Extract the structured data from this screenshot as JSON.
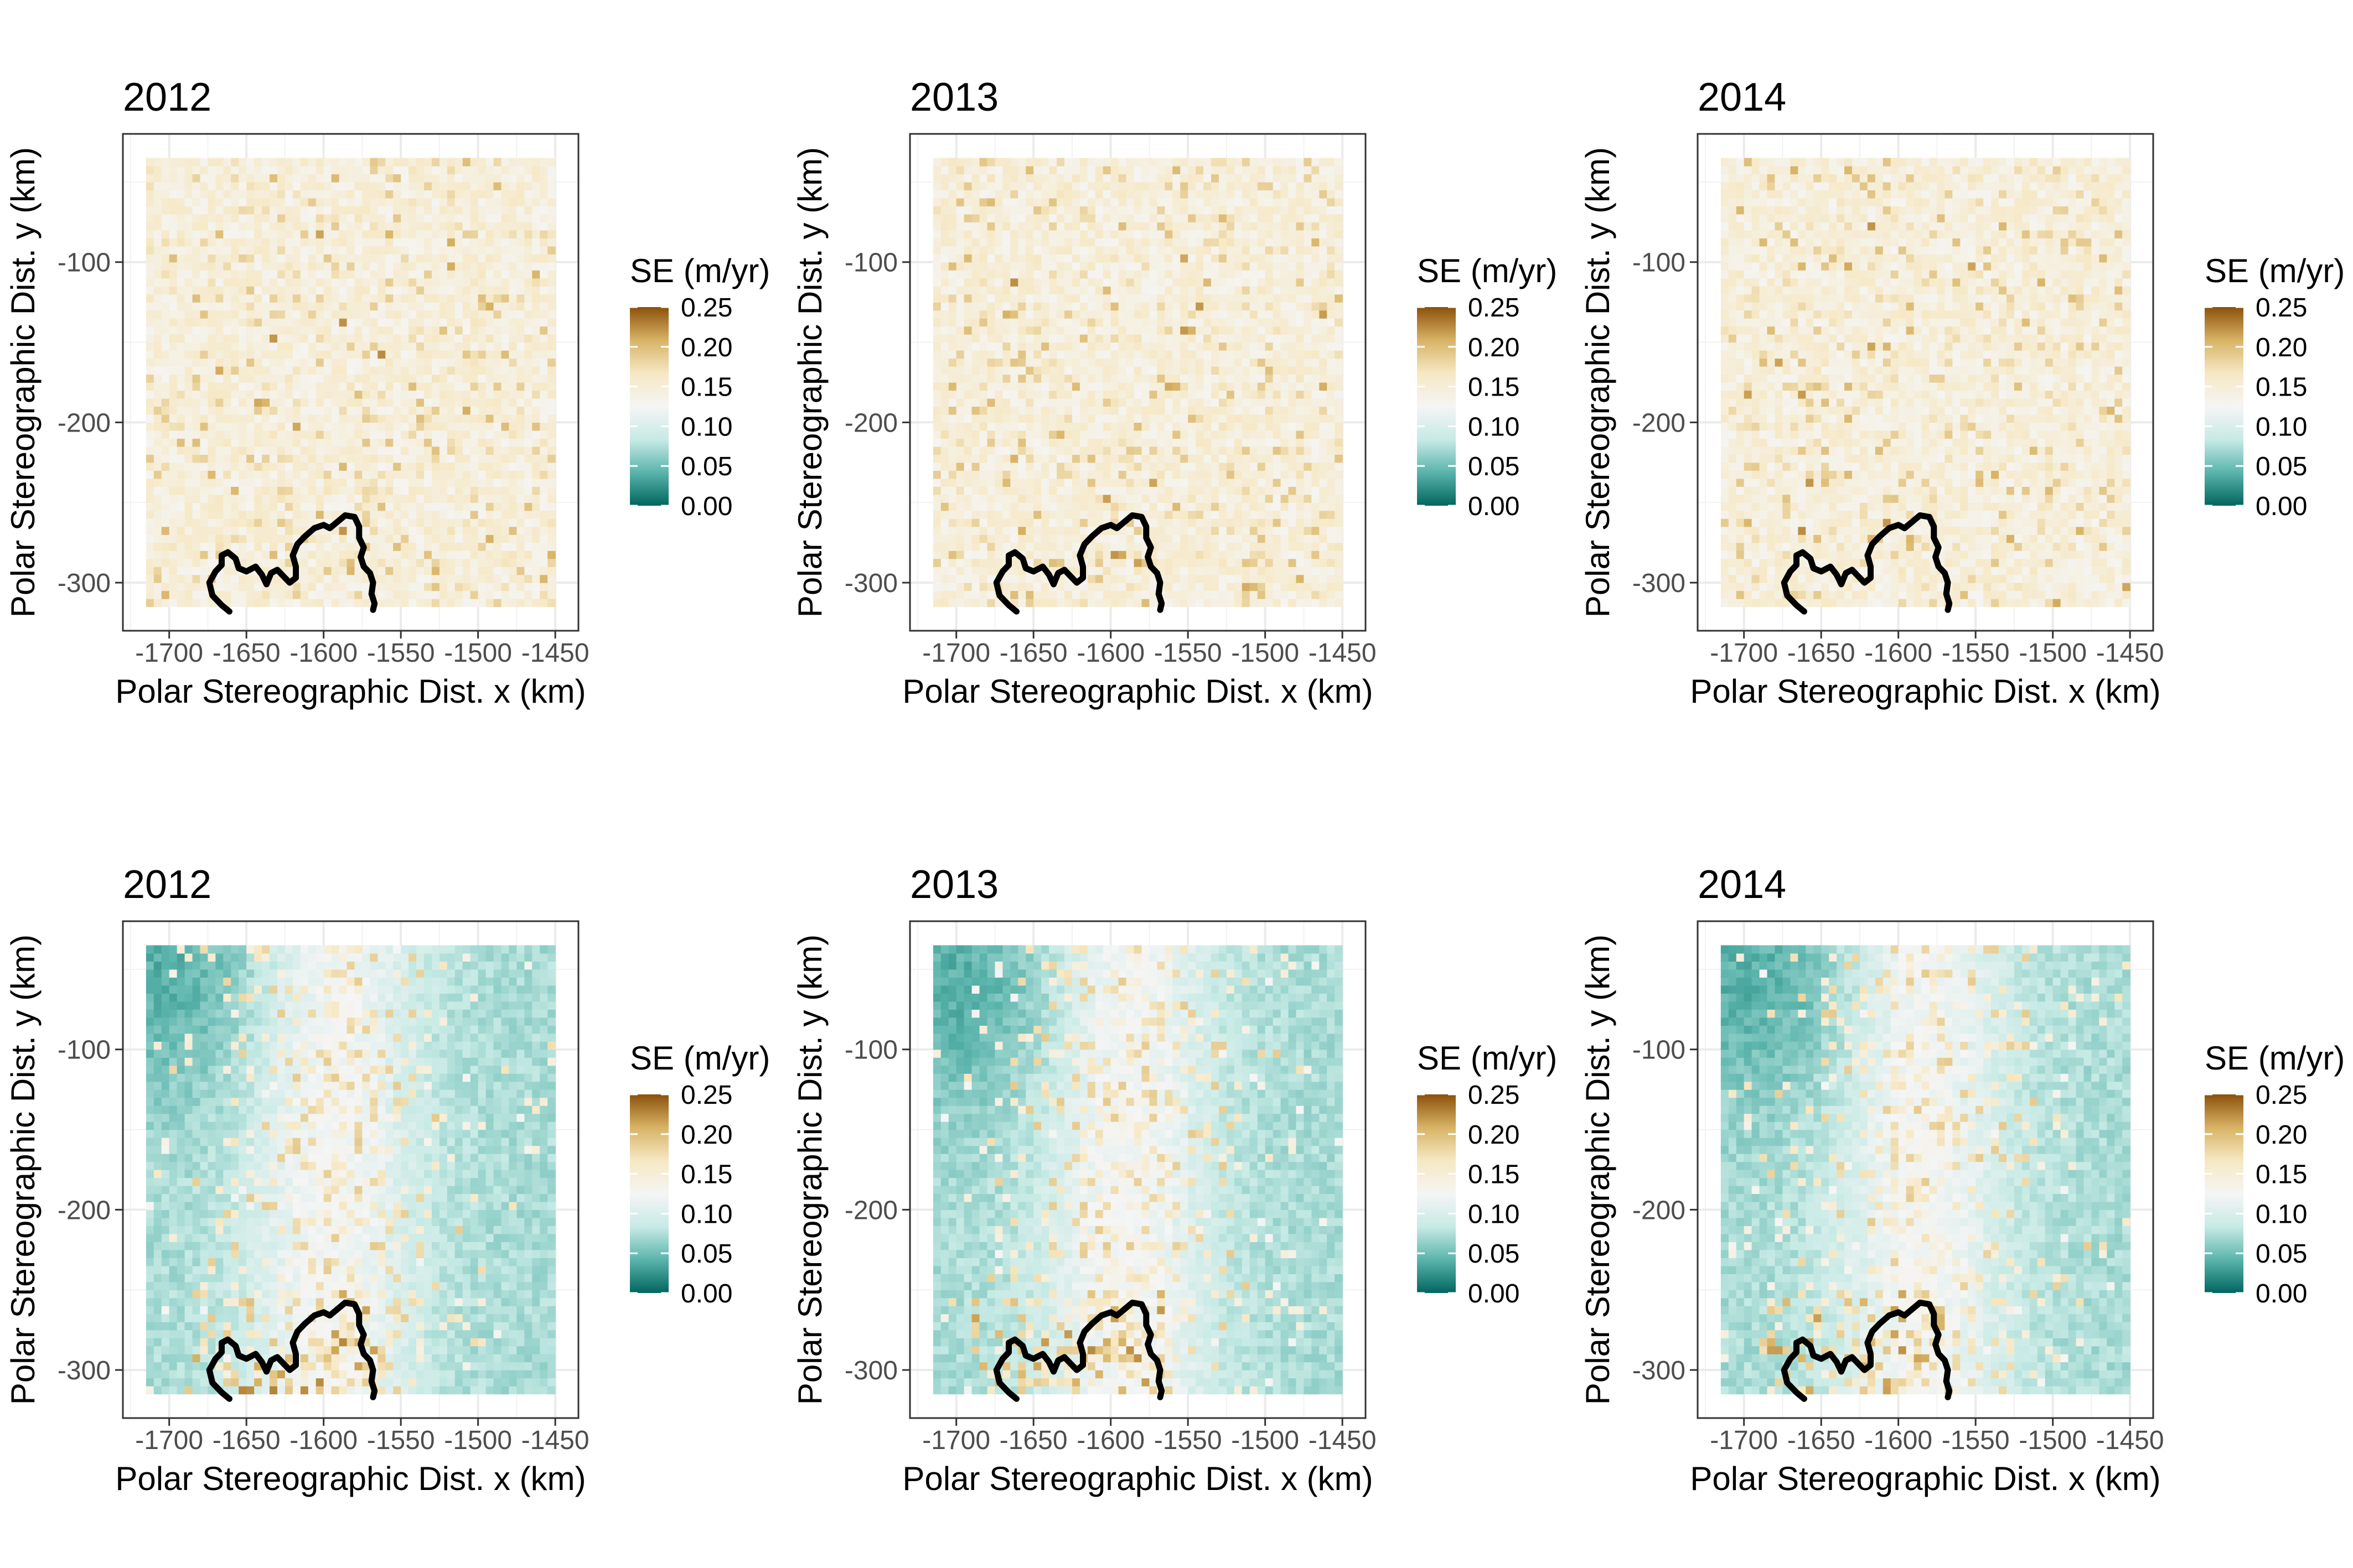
{
  "chart_data": {
    "type": "heatmap",
    "layout": "2 rows x 3 columns",
    "colorscale": {
      "name": "BrBG (diverging)",
      "colors": [
        "#01665e",
        "#5ab4ac",
        "#c7eae5",
        "#f5f5f5",
        "#f6e8c3",
        "#d8b365",
        "#8c510a"
      ],
      "range": [
        0,
        0.25
      ]
    },
    "coastline_color": "#000000",
    "panels": [
      {
        "id": "top-2012",
        "row": 1,
        "title": "2012",
        "xlabel": "Polar Stereographic Dist. x (km)",
        "ylabel": "Polar Stereographic Dist. y (km)",
        "x_ticks": [
          "-1700",
          "-1650",
          "-1600",
          "-1550",
          "-1500",
          "-1450"
        ],
        "y_ticks": [
          "-100",
          "-200",
          "-300"
        ],
        "xlim": [
          -1730,
          -1435
        ],
        "ylim": [
          -330,
          -20
        ],
        "grid_x_range": [
          -1715,
          -1450
        ],
        "grid_y_range": [
          -315,
          -35
        ],
        "legend_title": "SE (m/yr)",
        "legend_ticks": [
          "0.25",
          "0.20",
          "0.15",
          "0.10",
          "0.05",
          "0.00"
        ],
        "pattern": "uniform"
      },
      {
        "id": "top-2013",
        "row": 1,
        "title": "2013",
        "xlabel": "Polar Stereographic Dist. x (km)",
        "ylabel": "Polar Stereographic Dist. y (km)",
        "x_ticks": [
          "-1700",
          "-1650",
          "-1600",
          "-1550",
          "-1500",
          "-1450"
        ],
        "y_ticks": [
          "-100",
          "-200",
          "-300"
        ],
        "xlim": [
          -1730,
          -1435
        ],
        "ylim": [
          -330,
          -20
        ],
        "grid_x_range": [
          -1715,
          -1450
        ],
        "grid_y_range": [
          -315,
          -35
        ],
        "legend_title": "SE (m/yr)",
        "legend_ticks": [
          "0.25",
          "0.20",
          "0.15",
          "0.10",
          "0.05",
          "0.00"
        ],
        "pattern": "uniform"
      },
      {
        "id": "top-2014",
        "row": 1,
        "title": "2014",
        "xlabel": "Polar Stereographic Dist. x (km)",
        "ylabel": "Polar Stereographic Dist. y (km)",
        "x_ticks": [
          "-1700",
          "-1650",
          "-1600",
          "-1550",
          "-1500",
          "-1450"
        ],
        "y_ticks": [
          "-100",
          "-200",
          "-300"
        ],
        "xlim": [
          -1730,
          -1435
        ],
        "ylim": [
          -330,
          -20
        ],
        "grid_x_range": [
          -1715,
          -1450
        ],
        "grid_y_range": [
          -315,
          -35
        ],
        "legend_title": "SE (m/yr)",
        "legend_ticks": [
          "0.25",
          "0.20",
          "0.15",
          "0.10",
          "0.05",
          "0.00"
        ],
        "pattern": "uniform"
      },
      {
        "id": "bottom-2012",
        "row": 2,
        "title": "2012",
        "xlabel": "Polar Stereographic Dist. x (km)",
        "ylabel": "Polar Stereographic Dist. y (km)",
        "x_ticks": [
          "-1700",
          "-1650",
          "-1600",
          "-1550",
          "-1500",
          "-1450"
        ],
        "y_ticks": [
          "-100",
          "-200",
          "-300"
        ],
        "xlim": [
          -1730,
          -1435
        ],
        "ylim": [
          -330,
          -20
        ],
        "grid_x_range": [
          -1715,
          -1450
        ],
        "grid_y_range": [
          -315,
          -35
        ],
        "legend_title": "SE (m/yr)",
        "legend_ticks": [
          "0.25",
          "0.20",
          "0.15",
          "0.10",
          "0.05",
          "0.00"
        ],
        "pattern": "gradient",
        "band_center_x": -1595,
        "low_corner": [
          -1700,
          -50
        ]
      },
      {
        "id": "bottom-2013",
        "row": 2,
        "title": "2013",
        "xlabel": "Polar Stereographic Dist. x (km)",
        "ylabel": "Polar Stereographic Dist. y (km)",
        "x_ticks": [
          "-1700",
          "-1650",
          "-1600",
          "-1550",
          "-1500",
          "-1450"
        ],
        "y_ticks": [
          "-100",
          "-200",
          "-300"
        ],
        "xlim": [
          -1730,
          -1435
        ],
        "ylim": [
          -330,
          -20
        ],
        "grid_x_range": [
          -1715,
          -1450
        ],
        "grid_y_range": [
          -315,
          -35
        ],
        "legend_title": "SE (m/yr)",
        "legend_ticks": [
          "0.25",
          "0.20",
          "0.15",
          "0.10",
          "0.05",
          "0.00"
        ],
        "pattern": "gradient",
        "band_center_x": -1590,
        "low_corner": [
          -1695,
          -60
        ]
      },
      {
        "id": "bottom-2014",
        "row": 2,
        "title": "2014",
        "xlabel": "Polar Stereographic Dist. x (km)",
        "ylabel": "Polar Stereographic Dist. y (km)",
        "x_ticks": [
          "-1700",
          "-1650",
          "-1600",
          "-1550",
          "-1500",
          "-1450"
        ],
        "y_ticks": [
          "-100",
          "-200",
          "-300"
        ],
        "xlim": [
          -1730,
          -1435
        ],
        "ylim": [
          -330,
          -20
        ],
        "grid_x_range": [
          -1715,
          -1450
        ],
        "grid_y_range": [
          -315,
          -35
        ],
        "legend_title": "SE (m/yr)",
        "legend_ticks": [
          "0.25",
          "0.20",
          "0.15",
          "0.10",
          "0.05",
          "0.00"
        ],
        "pattern": "gradient",
        "band_center_x": -1585,
        "low_corner": [
          -1690,
          -55
        ]
      }
    ],
    "coastline": [
      [
        -1661,
        -318
      ],
      [
        -1666,
        -314
      ],
      [
        -1672,
        -308
      ],
      [
        -1674,
        -300
      ],
      [
        -1670,
        -293
      ],
      [
        -1666,
        -289
      ],
      [
        -1666,
        -283
      ],
      [
        -1662,
        -281
      ],
      [
        -1657,
        -285
      ],
      [
        -1655,
        -291
      ],
      [
        -1650,
        -293
      ],
      [
        -1644,
        -290
      ],
      [
        -1640,
        -295
      ],
      [
        -1637,
        -301
      ],
      [
        -1634,
        -294
      ],
      [
        -1630,
        -292
      ],
      [
        -1626,
        -296
      ],
      [
        -1622,
        -300
      ],
      [
        -1618,
        -297
      ],
      [
        -1618,
        -290
      ],
      [
        -1620,
        -283
      ],
      [
        -1617,
        -276
      ],
      [
        -1612,
        -271
      ],
      [
        -1606,
        -266
      ],
      [
        -1600,
        -264
      ],
      [
        -1596,
        -266
      ],
      [
        -1591,
        -262
      ],
      [
        -1586,
        -258
      ],
      [
        -1580,
        -259
      ],
      [
        -1577,
        -265
      ],
      [
        -1577,
        -272
      ],
      [
        -1574,
        -278
      ],
      [
        -1576,
        -284
      ],
      [
        -1574,
        -290
      ],
      [
        -1570,
        -294
      ],
      [
        -1568,
        -300
      ],
      [
        -1569,
        -307
      ],
      [
        -1567,
        -313
      ],
      [
        -1568,
        -317
      ]
    ]
  }
}
